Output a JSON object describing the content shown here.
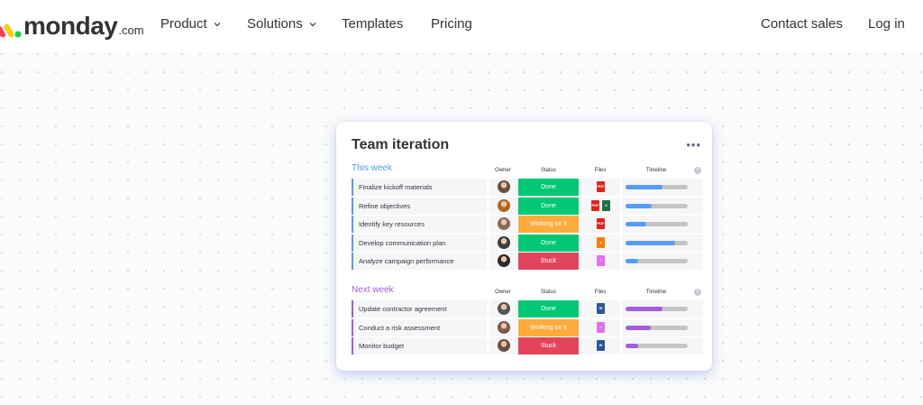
{
  "nav": {
    "logo_text": "monday",
    "logo_suffix": ".com",
    "items": [
      {
        "label": "Product",
        "has_dropdown": true
      },
      {
        "label": "Solutions",
        "has_dropdown": true
      },
      {
        "label": "Templates",
        "has_dropdown": false
      },
      {
        "label": "Pricing",
        "has_dropdown": false
      }
    ],
    "contact_sales": "Contact sales",
    "login": "Log in"
  },
  "board": {
    "title": "Team iteration",
    "menu_icon": "more-horizontal-icon",
    "columns": {
      "owner": "Owner",
      "status": "Status",
      "files": "Files",
      "timeline": "Timeline"
    },
    "groups": [
      {
        "title": "This week",
        "color": "#579bfc",
        "rows": [
          {
            "task": "Finalize kickoff materials",
            "status": "Done",
            "status_color": "#00c875",
            "files": [
              "pdf"
            ],
            "timeline": 0.6,
            "avatar_color": "#6b4f3f"
          },
          {
            "task": "Refine objectives",
            "status": "Done",
            "status_color": "#00c875",
            "files": [
              "pdf",
              "excel"
            ],
            "timeline": 0.42,
            "avatar_color": "#b5651d"
          },
          {
            "task": "Identify key resources",
            "status": "Working on it",
            "status_color": "#fdab3d",
            "files": [
              "pdf"
            ],
            "timeline": 0.33,
            "avatar_color": "#8a6a55"
          },
          {
            "task": "Develop communication plan",
            "status": "Done",
            "status_color": "#00c875",
            "files": [
              "image"
            ],
            "timeline": 0.8,
            "avatar_color": "#3d3d3d"
          },
          {
            "task": "Analyze campaign performance",
            "status": "Stuck",
            "status_color": "#e2445c",
            "files": [
              "doc"
            ],
            "timeline": 0.2,
            "avatar_color": "#2b2b2b"
          }
        ]
      },
      {
        "title": "Next week",
        "color": "#a25ddc",
        "rows": [
          {
            "task": "Update contractor agreement",
            "status": "Done",
            "status_color": "#00c875",
            "files": [
              "word"
            ],
            "timeline": 0.6,
            "avatar_color": "#555555"
          },
          {
            "task": "Conduct a risk assessment",
            "status": "Working on it",
            "status_color": "#fdab3d",
            "files": [
              "doc"
            ],
            "timeline": 0.4,
            "avatar_color": "#7a5a48"
          },
          {
            "task": "Monitor budget",
            "status": "Stuck",
            "status_color": "#e2445c",
            "files": [
              "word"
            ],
            "timeline": 0.2,
            "avatar_color": "#6b4f3f"
          }
        ]
      }
    ]
  }
}
